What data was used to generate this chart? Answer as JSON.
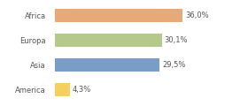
{
  "categories": [
    "Africa",
    "Europa",
    "Asia",
    "America"
  ],
  "values": [
    36.0,
    30.1,
    29.5,
    4.3
  ],
  "bar_colors": [
    "#e8a978",
    "#b5c98a",
    "#7a9dc8",
    "#f5d060"
  ],
  "labels": [
    "36,0%",
    "30,1%",
    "29,5%",
    "4,3%"
  ],
  "xlim": [
    0,
    46
  ],
  "background_color": "#ffffff",
  "tick_fontsize": 6.0,
  "label_fontsize": 6.0,
  "bar_height": 0.55
}
